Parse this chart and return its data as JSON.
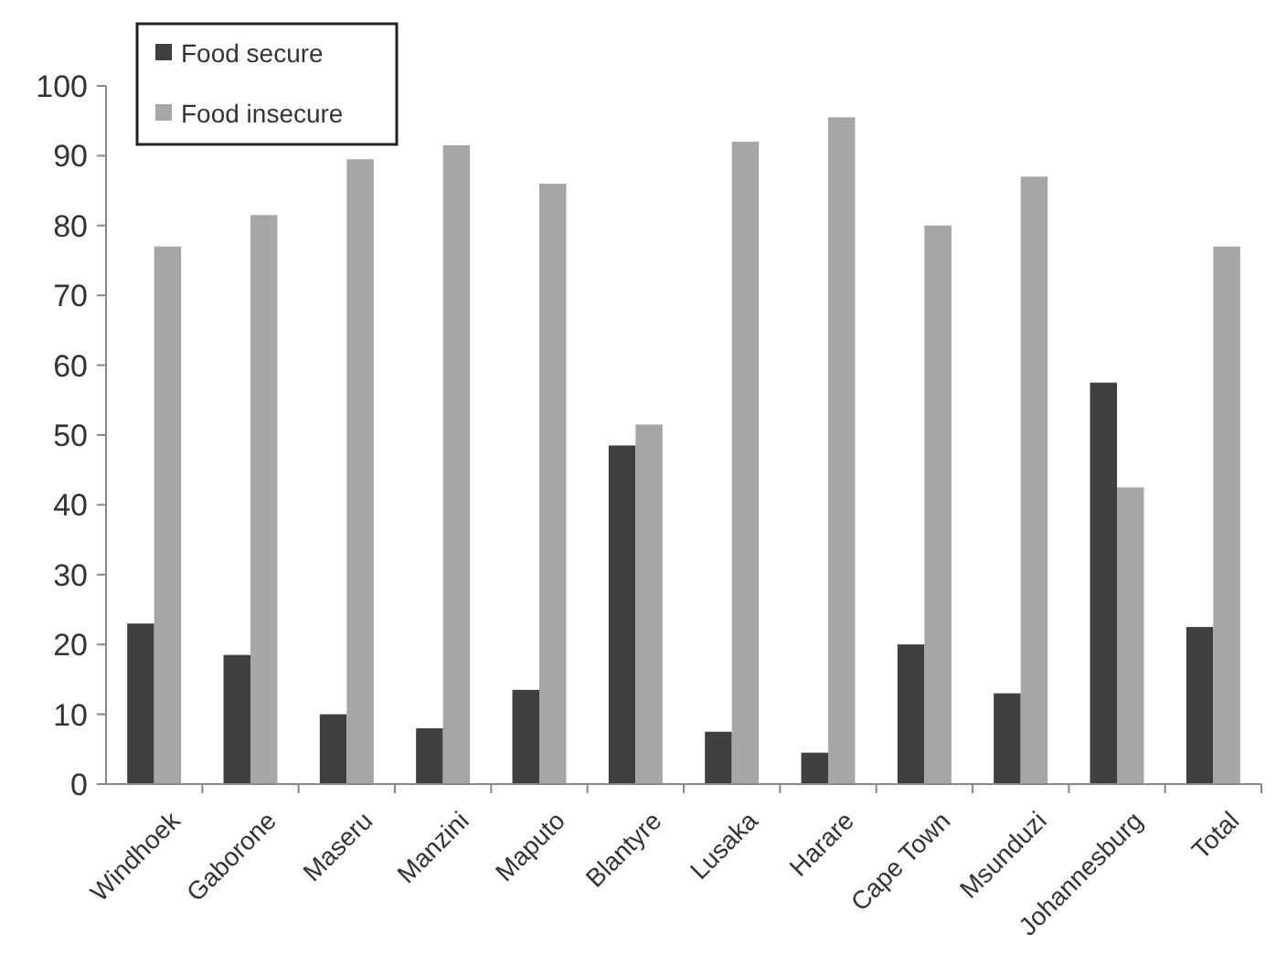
{
  "chart_data": {
    "type": "bar",
    "categories": [
      "Windhoek",
      "Gaborone",
      "Maseru",
      "Manzini",
      "Maputo",
      "Blantyre",
      "Lusaka",
      "Harare",
      "Cape Town",
      "Msunduzi",
      "Johannesburg",
      "Total"
    ],
    "series": [
      {
        "name": "Food secure",
        "color": "#3f3f3f",
        "values": [
          23,
          18.5,
          10,
          8,
          13.5,
          48.5,
          7.5,
          4.5,
          20,
          13,
          57.5,
          22.5
        ]
      },
      {
        "name": "Food insecure",
        "color": "#a6a6a6",
        "values": [
          77,
          81.5,
          89.5,
          91.5,
          86,
          51.5,
          92,
          95.5,
          80,
          87,
          42.5,
          77
        ]
      }
    ],
    "ylim": [
      0,
      100
    ],
    "yticks": [
      0,
      10,
      20,
      30,
      40,
      50,
      60,
      70,
      80,
      90,
      100
    ],
    "grid": false,
    "legend": "top left"
  }
}
